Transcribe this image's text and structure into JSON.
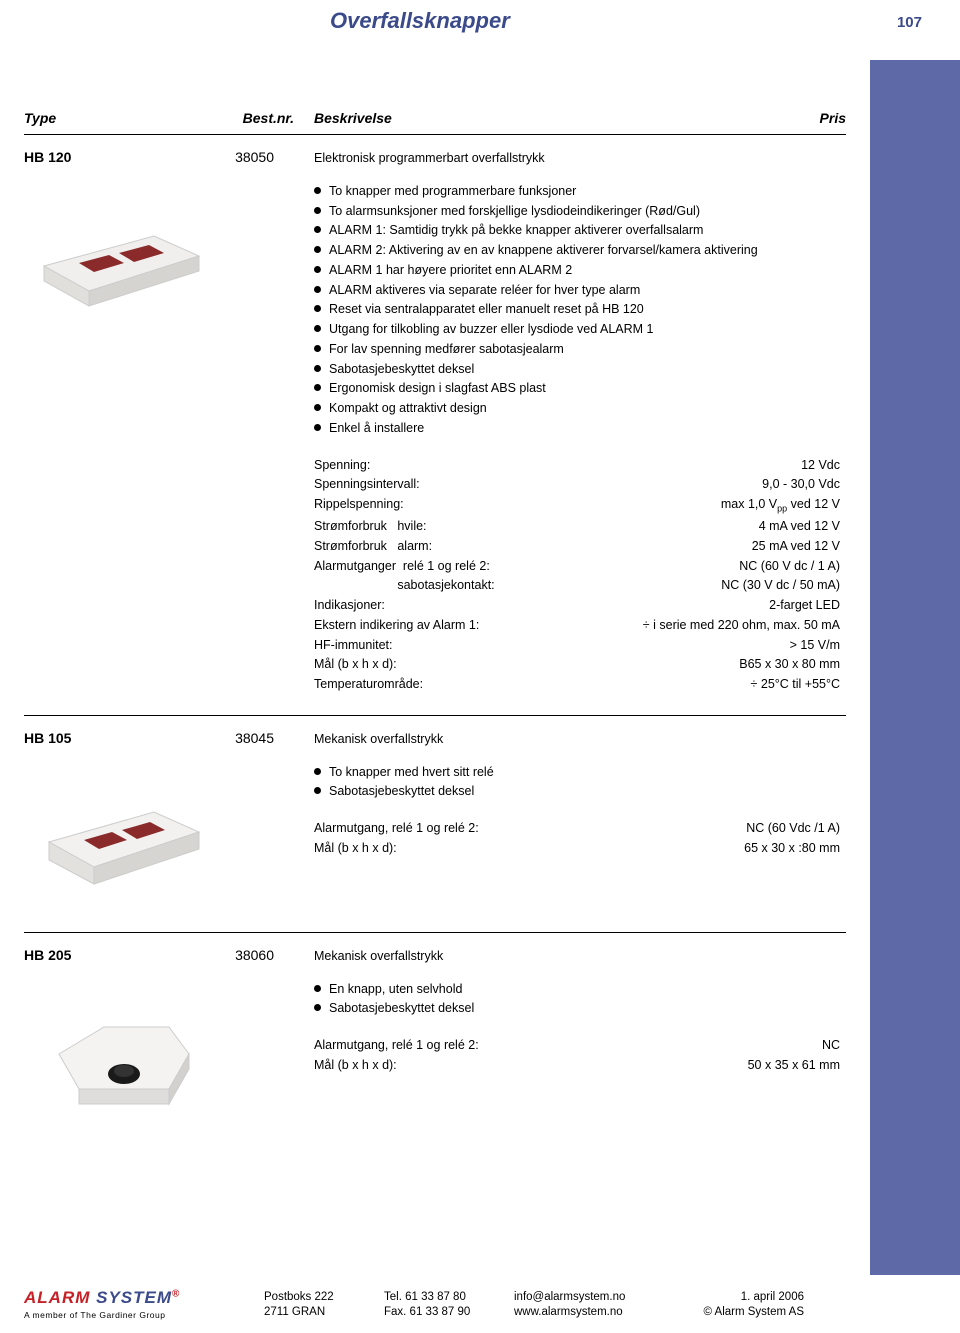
{
  "header": {
    "title": "Overfallsknapper",
    "page_number": "107",
    "title_color": "#3b4a8a",
    "band_color": "#5e6aa8"
  },
  "table_header": {
    "type": "Type",
    "bestnr": "Best.nr.",
    "beskrivelse": "Beskrivelse",
    "pris": "Pris"
  },
  "products": [
    {
      "type": "HB 120",
      "bestnr": "38050",
      "title": "Elektronisk programmerbart overfallstrykk",
      "bullets": [
        "To knapper med programmerbare funksjoner",
        "To alarmsunksjoner med forskjellige lysdiodeindikeringer (Rød/Gul)",
        "ALARM 1: Samtidig trykk på bekke knapper aktiverer overfallsalarm",
        "ALARM 2: Aktivering av en av knappene aktiverer forvarsel/kamera aktivering",
        "ALARM 1 har høyere prioritet enn ALARM 2",
        "ALARM aktiveres via separate reléer for hver type alarm",
        "Reset via sentralapparatet eller manuelt reset på HB 120",
        "Utgang for tilkobling av buzzer eller lysdiode ved ALARM 1",
        "For lav spenning medfører sabotasjealarm",
        "Sabotasjebeskyttet deksel",
        "Ergonomisk design i slagfast ABS plast",
        "Kompakt og attraktivt design",
        "Enkel å installere"
      ],
      "specs": [
        {
          "label": "Spenning:",
          "value": "12 Vdc"
        },
        {
          "label": "Spenningsintervall:",
          "value": "9,0 - 30,0 Vdc"
        },
        {
          "label": "Rippelspenning:",
          "value": "max 1,0 Vpp ved 12 V"
        },
        {
          "label": "Strømforbruk   hvile:",
          "value": "4 mA ved 12 V"
        },
        {
          "label": "Strømforbruk   alarm:",
          "value": "25 mA ved 12 V"
        },
        {
          "label": "Alarmutganger  relé 1 og relé 2:",
          "value": "NC (60 V dc / 1 A)"
        },
        {
          "label": "                        sabotasjekontakt:",
          "value": "NC (30 V dc / 50 mA)"
        },
        {
          "label": "Indikasjoner:",
          "value": "2-farget LED"
        },
        {
          "label": "Ekstern indikering av Alarm 1:",
          "value": "÷ i serie med 220 ohm, max. 50 mA"
        },
        {
          "label": "HF-immunitet:",
          "value": "> 15 V/m"
        },
        {
          "label": "Mål (b x h x d):",
          "value": "B65 x 30 x 80 mm"
        },
        {
          "label": "Temperaturområde:",
          "value": "÷ 25°C til +55°C"
        }
      ]
    },
    {
      "type": "HB 105",
      "bestnr": "38045",
      "title": "Mekanisk overfallstrykk",
      "bullets": [
        "To knapper med hvert sitt relé",
        "Sabotasjebeskyttet deksel"
      ],
      "specs": [
        {
          "label": "Alarmutgang, relé 1 og relé 2:",
          "value": "NC (60 Vdc /1 A)"
        },
        {
          "label": "Mål (b x h x d):",
          "value": "65 x 30 x :80 mm"
        }
      ]
    },
    {
      "type": "HB 205",
      "bestnr": "38060",
      "title": "Mekanisk overfallstrykk",
      "bullets": [
        "En knapp, uten selvhold",
        "Sabotasjebeskyttet deksel"
      ],
      "specs": [
        {
          "label": "Alarmutgang, relé 1 og relé 2:",
          "value": "NC"
        },
        {
          "label": "Mål (b x h x d):",
          "value": "50 x 35 x 61 mm"
        }
      ]
    }
  ],
  "footer": {
    "brand_alarm": "ALARM",
    "brand_system": "SYSTEM",
    "brand_r": "®",
    "tagline": "A member of The Gardiner Group",
    "addr1": "Postboks 222",
    "addr2": "2711  GRAN",
    "tel1": "Tel.   61 33 87 80",
    "tel2": "Fax.  61 33 87 90",
    "mail1": "info@alarmsystem.no",
    "mail2": "www.alarmsystem.no",
    "date1": "1. april 2006",
    "date2": "© Alarm System AS",
    "brand_alarm_color": "#c62127",
    "brand_system_color": "#3b4a8a"
  }
}
